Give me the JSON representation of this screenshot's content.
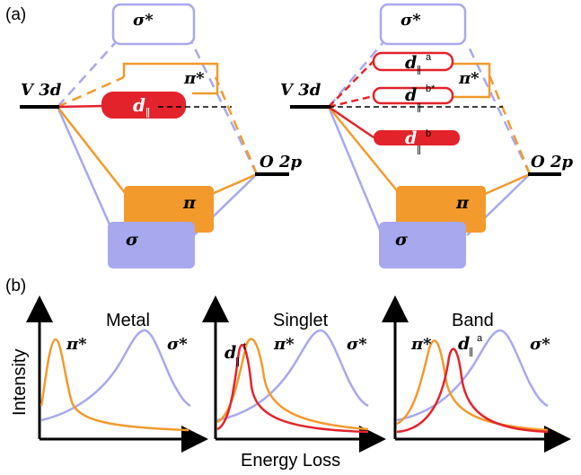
{
  "panel_a": {
    "label": "(a)",
    "left": {
      "v3d": "V 3d",
      "o2p": "O 2p",
      "sigma_star": "σ*",
      "pi_star": "π*",
      "d_parallel": "d",
      "pi": "π",
      "sigma": "σ"
    },
    "right": {
      "v3d": "V 3d",
      "o2p": "O 2p",
      "sigma_star": "σ*",
      "pi_star": "π*",
      "d_a": "d",
      "d_a_sup": "a",
      "d_bstar": "d",
      "d_bstar_sup": "b*",
      "d_b": "d",
      "d_b_sup": "b",
      "pi": "π",
      "sigma": "σ"
    }
  },
  "panel_b": {
    "label": "(b)",
    "y_label": "Intensity",
    "x_label": "Energy Loss",
    "plots": [
      {
        "title": "Metal",
        "pi_star": "π*",
        "sigma_star": "σ*"
      },
      {
        "title": "Singlet",
        "d_label": "d",
        "d_sup": "t",
        "pi_star": "π*",
        "sigma_star": "σ*"
      },
      {
        "title": "Band",
        "d_label": "d",
        "d_sup": "a",
        "pi_star": "π*",
        "sigma_star": "σ*"
      }
    ]
  },
  "colors": {
    "orange": "#f39a2c",
    "lavender": "#a8a8ef",
    "red": "#e3232b",
    "black": "#000000"
  }
}
